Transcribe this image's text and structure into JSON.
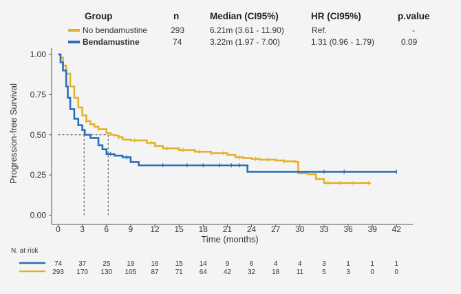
{
  "chart_data": {
    "type": "line",
    "xlabel": "Time (months)",
    "ylabel": "Progression-free Survival",
    "xlim": [
      0,
      42
    ],
    "ylim": [
      0,
      1
    ],
    "x_ticks": [
      0,
      3,
      6,
      9,
      12,
      15,
      18,
      21,
      24,
      27,
      30,
      33,
      36,
      39,
      42
    ],
    "y_ticks": [
      "0.00",
      "0.25",
      "0.50",
      "0.75",
      "1.00"
    ],
    "legend": {
      "headers": {
        "group": "Group",
        "n": "n",
        "median": "Median (CI95%)",
        "hr": "HR (CI95%)",
        "p": "p.value"
      },
      "rows": [
        {
          "group": "No bendamustine",
          "n": "293",
          "median": "6.21m (3.61 - 11.90)",
          "hr": "Ref.",
          "p": "-",
          "color": "#E2B22C"
        },
        {
          "group": "Bendamustine",
          "n": "74",
          "median": "3.22m (1.97 - 7.00)",
          "hr": "1.31 (0.96 - 1.79)",
          "p": "0.09",
          "color": "#2A6EBB"
        }
      ]
    },
    "median_reference": {
      "y": 0.5,
      "x_values": [
        3.22,
        6.21
      ]
    },
    "series": [
      {
        "name": "No bendamustine",
        "color": "#E2B22C",
        "points": [
          [
            0,
            1.0
          ],
          [
            0.3,
            0.98
          ],
          [
            0.6,
            0.93
          ],
          [
            1.0,
            0.88
          ],
          [
            1.5,
            0.8
          ],
          [
            2.0,
            0.73
          ],
          [
            2.5,
            0.67
          ],
          [
            3.0,
            0.62
          ],
          [
            3.5,
            0.585
          ],
          [
            4.0,
            0.565
          ],
          [
            4.5,
            0.55
          ],
          [
            5.0,
            0.535
          ],
          [
            6.0,
            0.51
          ],
          [
            6.5,
            0.5
          ],
          [
            7.0,
            0.495
          ],
          [
            7.5,
            0.485
          ],
          [
            8.0,
            0.47
          ],
          [
            9.0,
            0.465
          ],
          [
            10.0,
            0.465
          ],
          [
            11.0,
            0.45
          ],
          [
            12.0,
            0.43
          ],
          [
            13.0,
            0.415
          ],
          [
            15.0,
            0.405
          ],
          [
            17.0,
            0.395
          ],
          [
            19.0,
            0.385
          ],
          [
            21.0,
            0.375
          ],
          [
            22.0,
            0.36
          ],
          [
            23.0,
            0.355
          ],
          [
            24.0,
            0.35
          ],
          [
            25.0,
            0.345
          ],
          [
            27.0,
            0.34
          ],
          [
            28.0,
            0.335
          ],
          [
            29.5,
            0.33
          ],
          [
            29.8,
            0.26
          ],
          [
            31.0,
            0.255
          ],
          [
            32.0,
            0.225
          ],
          [
            33.0,
            0.2
          ],
          [
            37.0,
            0.2
          ],
          [
            38.8,
            0.2
          ]
        ],
        "censor_x": [
          3.5,
          5.0,
          7.5,
          9.5,
          11.5,
          13.5,
          15.5,
          17.5,
          19.0,
          20.5,
          22.5,
          24.5,
          26.0,
          28.0,
          33.5,
          35.0,
          36.5,
          38.5
        ]
      },
      {
        "name": "Bendamustine",
        "color": "#2A6EBB",
        "points": [
          [
            0,
            1.0
          ],
          [
            0.3,
            0.95
          ],
          [
            0.6,
            0.9
          ],
          [
            1.0,
            0.8
          ],
          [
            1.2,
            0.73
          ],
          [
            1.5,
            0.66
          ],
          [
            2.0,
            0.6
          ],
          [
            2.5,
            0.56
          ],
          [
            3.0,
            0.53
          ],
          [
            3.3,
            0.5
          ],
          [
            4.0,
            0.48
          ],
          [
            5.0,
            0.435
          ],
          [
            5.5,
            0.41
          ],
          [
            6.0,
            0.38
          ],
          [
            7.0,
            0.37
          ],
          [
            8.0,
            0.36
          ],
          [
            9.0,
            0.33
          ],
          [
            10.0,
            0.31
          ],
          [
            12.0,
            0.31
          ],
          [
            15.0,
            0.31
          ],
          [
            21.0,
            0.31
          ],
          [
            23.0,
            0.31
          ],
          [
            23.5,
            0.27
          ],
          [
            33.0,
            0.27
          ],
          [
            42.0,
            0.27
          ]
        ],
        "censor_x": [
          6.5,
          8.5,
          13.0,
          16.0,
          18.0,
          20.0,
          21.5,
          22.5,
          33.0,
          35.5,
          42.0
        ]
      }
    ],
    "risk_table": {
      "title": "N. at risk",
      "rows": [
        {
          "name": "Bendamustine",
          "color": "#2A6EBB",
          "counts": [
            "74",
            "37",
            "25",
            "19",
            "16",
            "15",
            "14",
            "9",
            "6",
            "4",
            "4",
            "3",
            "1",
            "1",
            "1"
          ]
        },
        {
          "name": "No bendamustine",
          "color": "#E2B22C",
          "counts": [
            "293",
            "170",
            "130",
            "105",
            "87",
            "71",
            "64",
            "42",
            "32",
            "18",
            "11",
            "5",
            "3",
            "0",
            "0"
          ]
        }
      ]
    }
  }
}
